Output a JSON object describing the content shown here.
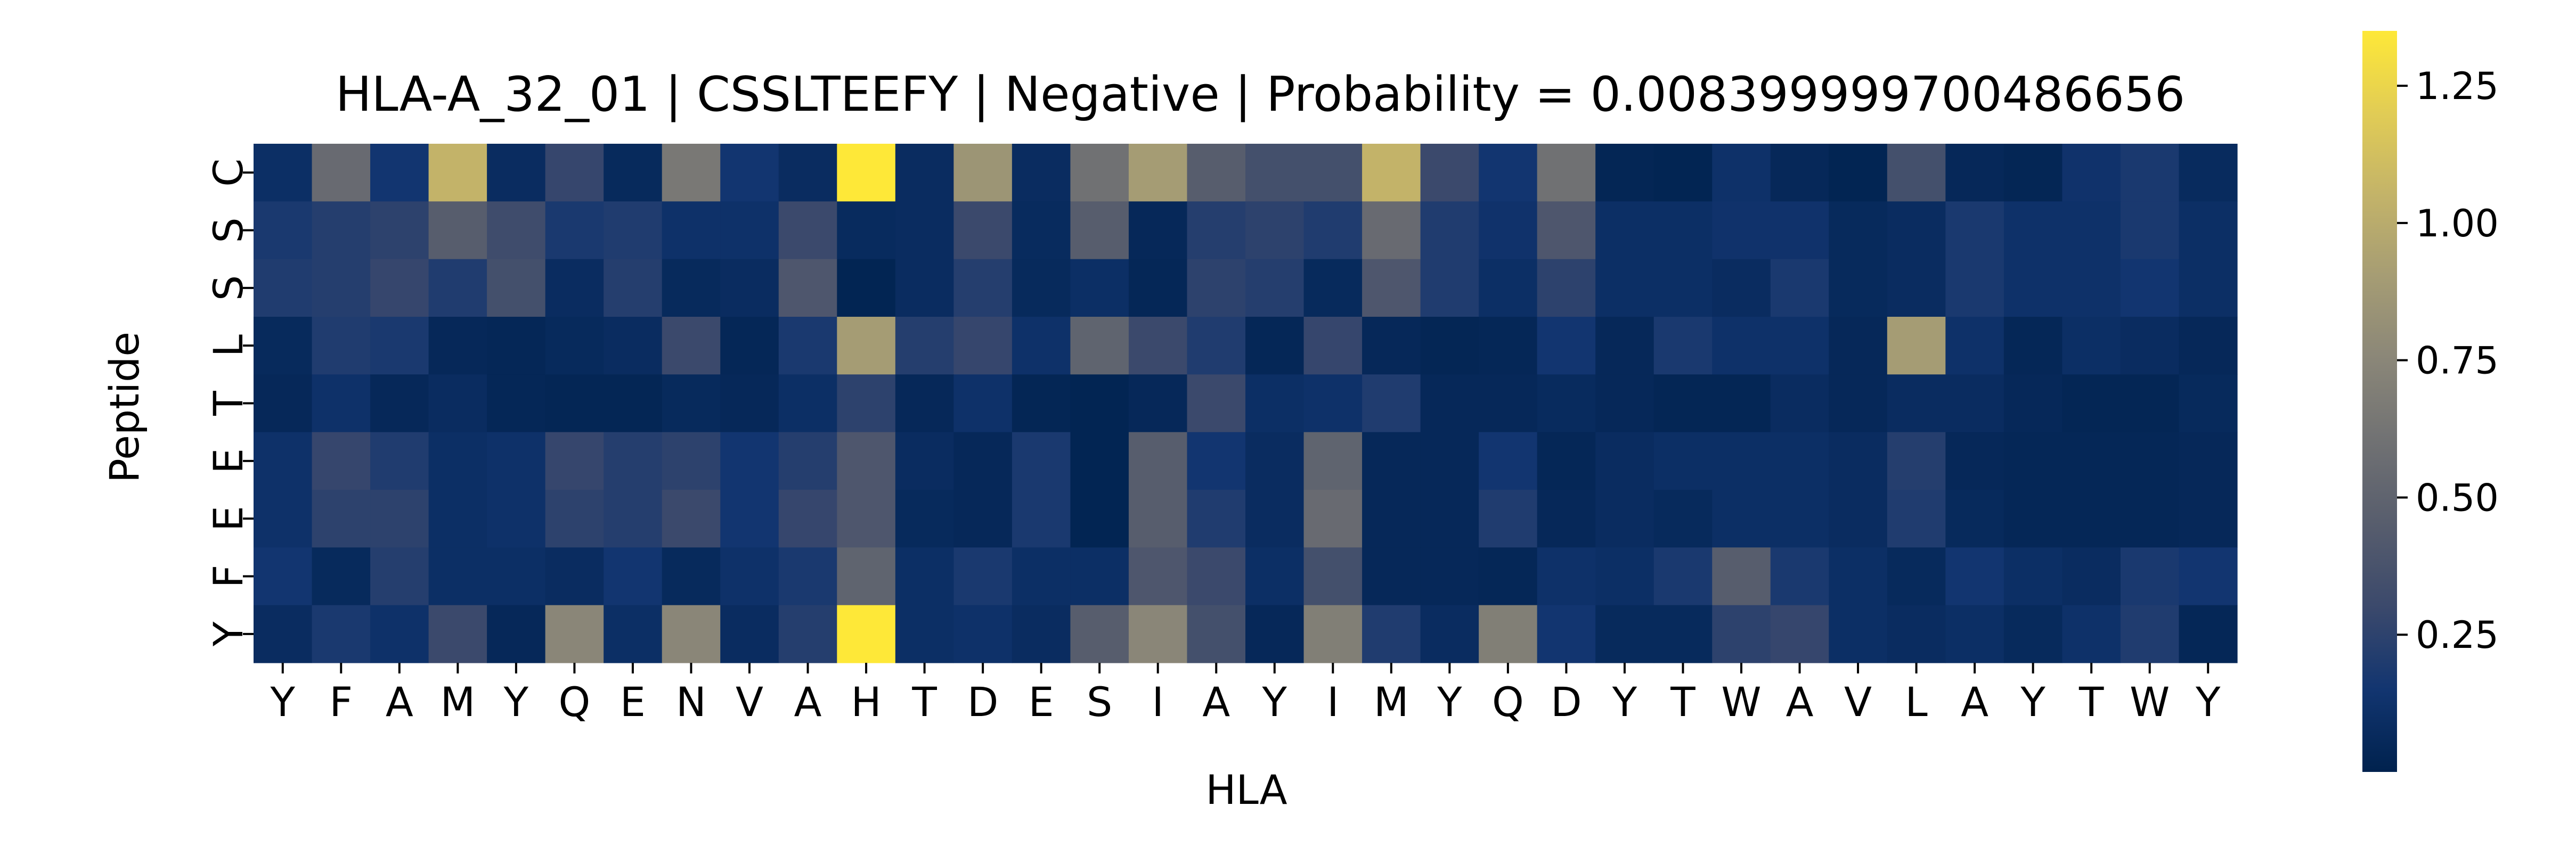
{
  "chart_data": {
    "type": "heatmap",
    "title": "HLA-A_32_01 | CSSLTEEFY | Negative | Probability = 0.008399999700486656",
    "xlabel": "HLA",
    "ylabel": "Peptide",
    "x_categories": [
      "Y",
      "F",
      "A",
      "M",
      "Y",
      "Q",
      "E",
      "N",
      "V",
      "A",
      "H",
      "T",
      "D",
      "E",
      "S",
      "I",
      "A",
      "Y",
      "I",
      "M",
      "Y",
      "Q",
      "D",
      "Y",
      "T",
      "W",
      "A",
      "V",
      "L",
      "A",
      "Y",
      "T",
      "W",
      "Y"
    ],
    "y_categories": [
      "C",
      "S",
      "S",
      "L",
      "T",
      "E",
      "E",
      "F",
      "Y"
    ],
    "colormap": "cividis",
    "colorbar": {
      "vmin": 0.0,
      "vmax": 1.35,
      "ticks": [
        0.25,
        0.5,
        0.75,
        1.0,
        1.25
      ],
      "tick_labels": [
        "0.25",
        "0.50",
        "0.75",
        "1.00",
        "1.25"
      ],
      "colors": [
        "#00224e",
        "#123570",
        "#3b496c",
        "#575d6d",
        "#707173",
        "#8a8678",
        "#a59c74",
        "#c3b369",
        "#e1cc55",
        "#fee838"
      ]
    },
    "values": [
      [
        0.1,
        0.55,
        0.15,
        1.05,
        0.08,
        0.28,
        0.06,
        0.65,
        0.15,
        0.08,
        1.35,
        0.08,
        0.85,
        0.08,
        0.6,
        0.9,
        0.45,
        0.35,
        0.35,
        1.05,
        0.3,
        0.15,
        0.6,
        0.03,
        0.02,
        0.12,
        0.05,
        0.02,
        0.35,
        0.05,
        0.03,
        0.13,
        0.18,
        0.07
      ],
      [
        0.18,
        0.22,
        0.25,
        0.45,
        0.32,
        0.18,
        0.2,
        0.12,
        0.12,
        0.3,
        0.07,
        0.08,
        0.3,
        0.07,
        0.45,
        0.05,
        0.22,
        0.25,
        0.2,
        0.55,
        0.2,
        0.13,
        0.4,
        0.1,
        0.1,
        0.13,
        0.13,
        0.06,
        0.08,
        0.18,
        0.12,
        0.12,
        0.18,
        0.1
      ],
      [
        0.2,
        0.22,
        0.28,
        0.2,
        0.35,
        0.08,
        0.22,
        0.06,
        0.08,
        0.4,
        0.02,
        0.08,
        0.22,
        0.06,
        0.1,
        0.04,
        0.25,
        0.22,
        0.06,
        0.4,
        0.2,
        0.1,
        0.25,
        0.1,
        0.1,
        0.08,
        0.18,
        0.06,
        0.08,
        0.18,
        0.12,
        0.12,
        0.15,
        0.1
      ],
      [
        0.06,
        0.2,
        0.18,
        0.05,
        0.04,
        0.06,
        0.08,
        0.3,
        0.04,
        0.18,
        0.9,
        0.22,
        0.28,
        0.12,
        0.5,
        0.3,
        0.2,
        0.04,
        0.28,
        0.05,
        0.03,
        0.04,
        0.15,
        0.05,
        0.18,
        0.12,
        0.12,
        0.05,
        0.9,
        0.12,
        0.04,
        0.1,
        0.08,
        0.05
      ],
      [
        0.05,
        0.12,
        0.05,
        0.08,
        0.04,
        0.03,
        0.03,
        0.06,
        0.05,
        0.1,
        0.25,
        0.05,
        0.12,
        0.03,
        0.02,
        0.05,
        0.3,
        0.1,
        0.12,
        0.2,
        0.05,
        0.05,
        0.07,
        0.05,
        0.03,
        0.03,
        0.08,
        0.05,
        0.08,
        0.08,
        0.05,
        0.03,
        0.03,
        0.06
      ],
      [
        0.12,
        0.28,
        0.2,
        0.1,
        0.12,
        0.28,
        0.22,
        0.25,
        0.15,
        0.22,
        0.4,
        0.08,
        0.05,
        0.18,
        0.02,
        0.45,
        0.15,
        0.08,
        0.5,
        0.05,
        0.05,
        0.15,
        0.04,
        0.08,
        0.1,
        0.1,
        0.1,
        0.08,
        0.22,
        0.05,
        0.04,
        0.04,
        0.04,
        0.05
      ],
      [
        0.12,
        0.25,
        0.25,
        0.1,
        0.12,
        0.25,
        0.22,
        0.3,
        0.15,
        0.28,
        0.4,
        0.06,
        0.05,
        0.18,
        0.02,
        0.45,
        0.2,
        0.08,
        0.55,
        0.05,
        0.05,
        0.2,
        0.05,
        0.08,
        0.06,
        0.1,
        0.1,
        0.08,
        0.2,
        0.06,
        0.04,
        0.04,
        0.04,
        0.05
      ],
      [
        0.15,
        0.06,
        0.22,
        0.1,
        0.1,
        0.08,
        0.15,
        0.06,
        0.12,
        0.18,
        0.5,
        0.1,
        0.18,
        0.1,
        0.1,
        0.4,
        0.3,
        0.1,
        0.35,
        0.05,
        0.05,
        0.04,
        0.12,
        0.1,
        0.18,
        0.45,
        0.18,
        0.1,
        0.06,
        0.15,
        0.1,
        0.08,
        0.18,
        0.15
      ],
      [
        0.08,
        0.18,
        0.12,
        0.3,
        0.05,
        0.75,
        0.1,
        0.75,
        0.08,
        0.22,
        1.35,
        0.1,
        0.12,
        0.08,
        0.45,
        0.75,
        0.35,
        0.05,
        0.7,
        0.2,
        0.08,
        0.7,
        0.15,
        0.06,
        0.06,
        0.25,
        0.28,
        0.1,
        0.08,
        0.1,
        0.06,
        0.12,
        0.2,
        0.04
      ]
    ]
  }
}
